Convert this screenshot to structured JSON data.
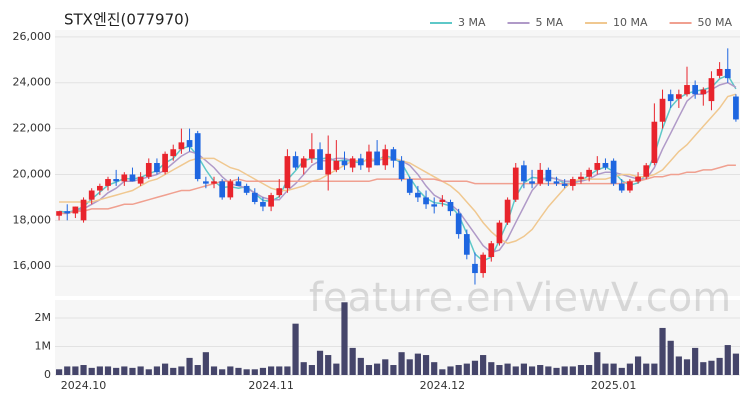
{
  "watermark": "feature.enViewV.com",
  "chart_data": [
    {
      "type": "candlestick",
      "title": "STX엔진(077970)",
      "up_color": "#e8242c",
      "down_color": "#1e66e0",
      "legend": "top-right",
      "grid": true,
      "ylim": [
        14700,
        26300
      ],
      "yticks": [
        {
          "value": 16000,
          "label": "16,000"
        },
        {
          "value": 18000,
          "label": "18,000"
        },
        {
          "value": 20000,
          "label": "20,000"
        },
        {
          "value": 22000,
          "label": "22,000"
        },
        {
          "value": 24000,
          "label": "24,000"
        },
        {
          "value": 26000,
          "label": "26,000"
        }
      ],
      "open": [
        18200,
        18400,
        18300,
        18000,
        18900,
        19300,
        19500,
        19800,
        19700,
        20000,
        19600,
        19900,
        20500,
        20100,
        20800,
        21100,
        21500,
        21800,
        19700,
        19600,
        19700,
        19000,
        19700,
        19500,
        19200,
        18800,
        18600,
        19100,
        19400,
        20800,
        20300,
        20700,
        21100,
        20000,
        20200,
        20600,
        20300,
        20700,
        20300,
        21000,
        20400,
        21100,
        20600,
        19800,
        19200,
        19000,
        18700,
        18800,
        18800,
        18300,
        17400,
        16100,
        15700,
        16400,
        17000,
        17900,
        18900,
        20400,
        19700,
        19600,
        20200,
        19700,
        19600,
        19500,
        19800,
        19900,
        20200,
        20500,
        20600,
        19600,
        19300,
        19700,
        19900,
        20500,
        22300,
        23500,
        23300,
        23500,
        23900,
        23500,
        23200,
        24300,
        24600,
        23400
      ],
      "high": [
        18400,
        18700,
        18600,
        19000,
        19400,
        19600,
        19900,
        20200,
        20100,
        20300,
        20100,
        20700,
        20700,
        21000,
        21300,
        22000,
        22000,
        21900,
        19900,
        19900,
        19800,
        19800,
        19900,
        19600,
        19400,
        19000,
        19200,
        19800,
        21100,
        21000,
        20800,
        21800,
        21400,
        21700,
        21500,
        21000,
        20800,
        20900,
        21300,
        21500,
        21300,
        21200,
        20800,
        19900,
        19500,
        19300,
        19000,
        19100,
        18900,
        18500,
        17600,
        16600,
        16600,
        17100,
        18000,
        19000,
        20500,
        20600,
        20200,
        20500,
        20300,
        19900,
        19800,
        19900,
        20100,
        20300,
        20800,
        20700,
        20700,
        19800,
        19800,
        20100,
        20500,
        23100,
        23700,
        23700,
        23700,
        24700,
        24100,
        23800,
        24500,
        24900,
        25500,
        23500
      ],
      "low": [
        18000,
        18000,
        18100,
        17900,
        18700,
        19100,
        19300,
        19500,
        19500,
        19700,
        19500,
        19800,
        20000,
        20000,
        20600,
        20900,
        21000,
        19700,
        19400,
        19400,
        18900,
        18900,
        19500,
        19100,
        18700,
        18400,
        18400,
        19000,
        19200,
        20200,
        20000,
        20500,
        20200,
        19300,
        20100,
        20200,
        20100,
        20200,
        20100,
        20400,
        20200,
        20300,
        19700,
        19100,
        18800,
        18500,
        18300,
        18600,
        18200,
        17200,
        16300,
        15200,
        15500,
        16200,
        16900,
        17800,
        18800,
        19400,
        19400,
        19500,
        19500,
        19500,
        19400,
        19300,
        19600,
        19700,
        20000,
        20200,
        19500,
        19200,
        19200,
        19600,
        19800,
        20400,
        22000,
        22900,
        22900,
        23400,
        23300,
        23000,
        22800,
        24200,
        24000,
        22300
      ],
      "close": [
        18400,
        18300,
        18600,
        18900,
        19300,
        19500,
        19800,
        19700,
        20000,
        19700,
        19900,
        20500,
        20100,
        20900,
        21100,
        21400,
        21200,
        19800,
        19600,
        19700,
        19000,
        19700,
        19500,
        19200,
        18800,
        18600,
        19100,
        19400,
        20800,
        20300,
        20700,
        21100,
        20200,
        20900,
        20600,
        20400,
        20700,
        20400,
        21000,
        20400,
        21100,
        20600,
        19800,
        19200,
        19000,
        18700,
        18600,
        18900,
        18400,
        17400,
        16500,
        15700,
        16500,
        17000,
        17900,
        18900,
        20300,
        19700,
        19600,
        20200,
        19700,
        19600,
        19500,
        19800,
        19900,
        20200,
        20500,
        20300,
        19600,
        19300,
        19700,
        19900,
        20400,
        22300,
        23300,
        23200,
        23500,
        23900,
        23500,
        23700,
        24200,
        24600,
        24200,
        22400
      ],
      "series": [
        {
          "name": "3 MA",
          "color": "#5ec8c8",
          "values": [
            18400,
            18350,
            18430,
            18600,
            18930,
            19230,
            19530,
            19670,
            19830,
            19800,
            19870,
            20030,
            20170,
            20500,
            20700,
            21130,
            21230,
            20800,
            20200,
            19700,
            19430,
            19470,
            19400,
            19470,
            19170,
            18870,
            18830,
            19030,
            19770,
            20170,
            20600,
            20700,
            20670,
            20730,
            20570,
            20630,
            20570,
            20500,
            20700,
            20600,
            20830,
            20700,
            20500,
            19870,
            19330,
            18970,
            18770,
            18730,
            18630,
            18230,
            17430,
            16530,
            16230,
            16400,
            17130,
            17930,
            19030,
            19630,
            19870,
            19830,
            19830,
            19830,
            19600,
            19630,
            19730,
            19970,
            20200,
            20330,
            20130,
            19730,
            19530,
            19630,
            20000,
            20870,
            22000,
            22930,
            23330,
            23530,
            23630,
            23700,
            23800,
            24170,
            24330,
            23730
          ]
        },
        {
          "name": "5 MA",
          "color": "#b09ac8",
          "values": [
            18300,
            18300,
            18400,
            18500,
            18700,
            18900,
            19200,
            19400,
            19700,
            19700,
            19800,
            19900,
            20000,
            20200,
            20500,
            20800,
            21000,
            20900,
            20600,
            20300,
            19900,
            19600,
            19500,
            19400,
            19200,
            19000,
            18900,
            18900,
            19300,
            19600,
            20000,
            20400,
            20600,
            20600,
            20700,
            20700,
            20600,
            20600,
            20600,
            20600,
            20700,
            20700,
            20600,
            20400,
            20000,
            19500,
            19100,
            18900,
            18700,
            18400,
            17900,
            17400,
            16900,
            16600,
            16700,
            17200,
            17900,
            18600,
            19300,
            19700,
            19900,
            19800,
            19700,
            19700,
            19700,
            19800,
            20000,
            20100,
            20100,
            20000,
            19900,
            19800,
            19800,
            20300,
            21100,
            21800,
            22500,
            23200,
            23500,
            23500,
            23700,
            23900,
            24000,
            23800
          ]
        },
        {
          "name": "10 MA",
          "color": "#f0c890",
          "values": [
            18800,
            18800,
            18800,
            18800,
            18800,
            18900,
            19000,
            19100,
            19200,
            19300,
            19500,
            19700,
            19800,
            20000,
            20200,
            20400,
            20600,
            20700,
            20700,
            20700,
            20500,
            20300,
            20200,
            20000,
            19800,
            19600,
            19400,
            19300,
            19300,
            19400,
            19500,
            19700,
            19800,
            20000,
            20200,
            20400,
            20600,
            20600,
            20600,
            20700,
            20700,
            20700,
            20600,
            20500,
            20300,
            20100,
            19900,
            19700,
            19500,
            19200,
            18800,
            18400,
            17900,
            17500,
            17200,
            17000,
            17100,
            17300,
            17600,
            18100,
            18600,
            19000,
            19400,
            19700,
            19800,
            19800,
            19800,
            19800,
            19900,
            20000,
            20000,
            19900,
            19900,
            20000,
            20200,
            20600,
            21000,
            21300,
            21700,
            22100,
            22500,
            22900,
            23400,
            23500
          ]
        },
        {
          "name": "50 MA",
          "color": "#f0a090",
          "values": [
            18300,
            18300,
            18400,
            18400,
            18500,
            18500,
            18500,
            18600,
            18700,
            18700,
            18800,
            18900,
            19000,
            19100,
            19200,
            19300,
            19300,
            19400,
            19500,
            19600,
            19700,
            19700,
            19800,
            19700,
            19700,
            19700,
            19700,
            19700,
            19700,
            19700,
            19700,
            19700,
            19700,
            19700,
            19700,
            19700,
            19700,
            19700,
            19700,
            19800,
            19800,
            19800,
            19800,
            19800,
            19800,
            19800,
            19800,
            19700,
            19700,
            19700,
            19700,
            19600,
            19600,
            19600,
            19600,
            19600,
            19600,
            19600,
            19600,
            19600,
            19600,
            19600,
            19600,
            19600,
            19600,
            19600,
            19600,
            19600,
            19600,
            19600,
            19700,
            19700,
            19800,
            19900,
            19900,
            20000,
            20000,
            20100,
            20100,
            20200,
            20200,
            20300,
            20400,
            20400
          ]
        }
      ]
    },
    {
      "type": "bar",
      "color": "#45456a",
      "grid": true,
      "ylim": [
        0,
        2630000
      ],
      "yticks": [
        0,
        {
          "value": 1000000,
          "label": "1M"
        },
        {
          "value": 2000000,
          "label": "2M"
        }
      ],
      "categories": [
        null,
        null,
        null,
        "2024.10",
        null,
        null,
        null,
        null,
        null,
        null,
        null,
        null,
        null,
        null,
        null,
        null,
        null,
        null,
        null,
        null,
        null,
        null,
        null,
        null,
        null,
        null,
        "2024.11",
        null,
        null,
        null,
        null,
        null,
        null,
        null,
        null,
        null,
        null,
        null,
        null,
        null,
        null,
        null,
        null,
        null,
        null,
        null,
        null,
        "2024.12",
        null,
        null,
        null,
        null,
        null,
        null,
        null,
        null,
        null,
        null,
        null,
        null,
        null,
        null,
        null,
        null,
        null,
        null,
        null,
        null,
        "2025.01",
        null,
        null,
        null,
        null,
        null,
        null,
        null,
        null,
        null,
        null,
        null,
        null,
        null,
        null,
        null
      ],
      "values": [
        200000,
        300000,
        300000,
        350000,
        250000,
        300000,
        300000,
        250000,
        300000,
        250000,
        300000,
        200000,
        300000,
        400000,
        250000,
        300000,
        600000,
        350000,
        800000,
        300000,
        200000,
        300000,
        250000,
        200000,
        200000,
        250000,
        300000,
        300000,
        300000,
        1800000,
        450000,
        350000,
        850000,
        700000,
        400000,
        2550000,
        950000,
        600000,
        350000,
        400000,
        550000,
        350000,
        800000,
        550000,
        750000,
        700000,
        450000,
        200000,
        300000,
        350000,
        400000,
        500000,
        700000,
        450000,
        350000,
        400000,
        300000,
        400000,
        300000,
        350000,
        300000,
        250000,
        300000,
        300000,
        350000,
        350000,
        800000,
        400000,
        400000,
        250000,
        400000,
        650000,
        400000,
        400000,
        1650000,
        1200000,
        650000,
        550000,
        950000,
        450000,
        500000,
        600000,
        1050000,
        750000
      ]
    }
  ]
}
